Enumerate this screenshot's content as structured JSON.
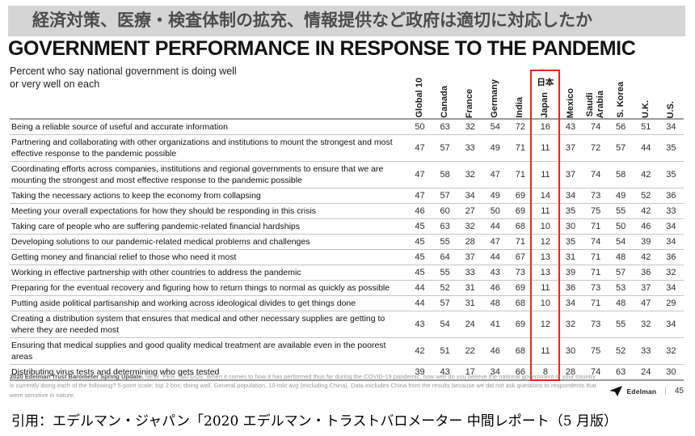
{
  "banner": {
    "text": "経済対策、医療・検査体制の拡充、情報提供など政府は適切に対応したか"
  },
  "title": "GOVERNMENT PERFORMANCE IN RESPONSE TO THE PANDEMIC",
  "subtitle": {
    "line1": "Percent who say national government is doing well",
    "line2": "or very well on each"
  },
  "japan_highlight": {
    "label": "日本",
    "color": "#e8251e"
  },
  "table": {
    "columns": [
      {
        "label": "Global 10"
      },
      {
        "label": "Canada"
      },
      {
        "label": "France"
      },
      {
        "label": "Germany"
      },
      {
        "label": "India"
      },
      {
        "label": "Japan",
        "sublabel": "日本",
        "highlight": true
      },
      {
        "label": "Mexico"
      },
      {
        "label": "Saudi\nArabia"
      },
      {
        "label": "S. Korea"
      },
      {
        "label": "U.K."
      },
      {
        "label": "U.S."
      }
    ],
    "rows": [
      {
        "statement": "Being a reliable source of useful and accurate information",
        "values": [
          50,
          63,
          32,
          54,
          72,
          16,
          43,
          74,
          56,
          51,
          34
        ]
      },
      {
        "statement": "Partnering and collaborating with other organizations and institutions to mount the strongest and most effective response to the pandemic possible",
        "values": [
          47,
          57,
          33,
          49,
          71,
          11,
          37,
          72,
          57,
          44,
          35
        ]
      },
      {
        "statement": "Coordinating efforts across companies, institutions and regional governments to ensure that we are mounting the strongest and most effective response to the pandemic possible",
        "values": [
          47,
          58,
          32,
          47,
          71,
          11,
          37,
          74,
          58,
          42,
          35
        ]
      },
      {
        "statement": "Taking the necessary actions to keep the economy from collapsing",
        "values": [
          47,
          57,
          34,
          49,
          69,
          14,
          34,
          73,
          49,
          52,
          36
        ]
      },
      {
        "statement": "Meeting your overall expectations for how they should be responding in this crisis",
        "values": [
          46,
          60,
          27,
          50,
          69,
          11,
          35,
          75,
          55,
          42,
          33
        ]
      },
      {
        "statement": "Taking care of people who are suffering pandemic-related financial hardships",
        "values": [
          45,
          63,
          32,
          44,
          68,
          10,
          30,
          71,
          50,
          46,
          34
        ]
      },
      {
        "statement": "Developing solutions to our pandemic-related medical problems and challenges",
        "values": [
          45,
          55,
          28,
          47,
          71,
          12,
          35,
          74,
          54,
          39,
          34
        ]
      },
      {
        "statement": "Getting money and financial relief to those who need it most",
        "values": [
          45,
          64,
          37,
          44,
          67,
          13,
          31,
          71,
          48,
          42,
          36
        ]
      },
      {
        "statement": "Working in effective partnership with other countries to address the pandemic",
        "values": [
          45,
          55,
          33,
          43,
          73,
          13,
          39,
          71,
          57,
          36,
          32
        ]
      },
      {
        "statement": "Preparing for the eventual recovery and figuring how to return things to normal as quickly as possible",
        "values": [
          44,
          52,
          31,
          46,
          69,
          11,
          36,
          73,
          53,
          37,
          34
        ]
      },
      {
        "statement": "Putting aside political partisanship and working across ideological divides to get things done",
        "values": [
          44,
          57,
          31,
          48,
          68,
          10,
          34,
          71,
          48,
          47,
          29
        ]
      },
      {
        "statement": "Creating a distribution system that ensures that medical and other necessary supplies are getting to where they are needed most",
        "values": [
          43,
          54,
          24,
          41,
          69,
          12,
          32,
          73,
          55,
          32,
          34
        ]
      },
      {
        "statement": "Ensuring that medical supplies and good quality medical treatment are available even in the poorest areas",
        "values": [
          42,
          51,
          22,
          46,
          68,
          11,
          30,
          75,
          52,
          33,
          32
        ]
      },
      {
        "statement": "Distributing virus tests and determining who gets tested",
        "values": [
          39,
          43,
          17,
          34,
          66,
          8,
          28,
          74,
          63,
          24,
          30
        ]
      }
    ]
  },
  "footnote": {
    "bold": "2020 Edelman Trust Barometer Spring Update.",
    "text": "NEW_PER_NATGOV. When it comes to how it has performed thus far during the COVID-19 pandemic, how well do you believe the national government of your country is currently doing each of the following? 5-point scale; top 2 box, doing well. General population, 10-mkt avg (excluding China). Data excludes China from the results because we did not ask questions to respondents that were sensitive in nature."
  },
  "footer": {
    "brand": "Edelman",
    "divider": "|",
    "page_number": "45"
  },
  "caption": "引用：エデルマン・ジャパン「2020 エデルマン・トラストバロメーター 中間レポート（5 月版）"
}
